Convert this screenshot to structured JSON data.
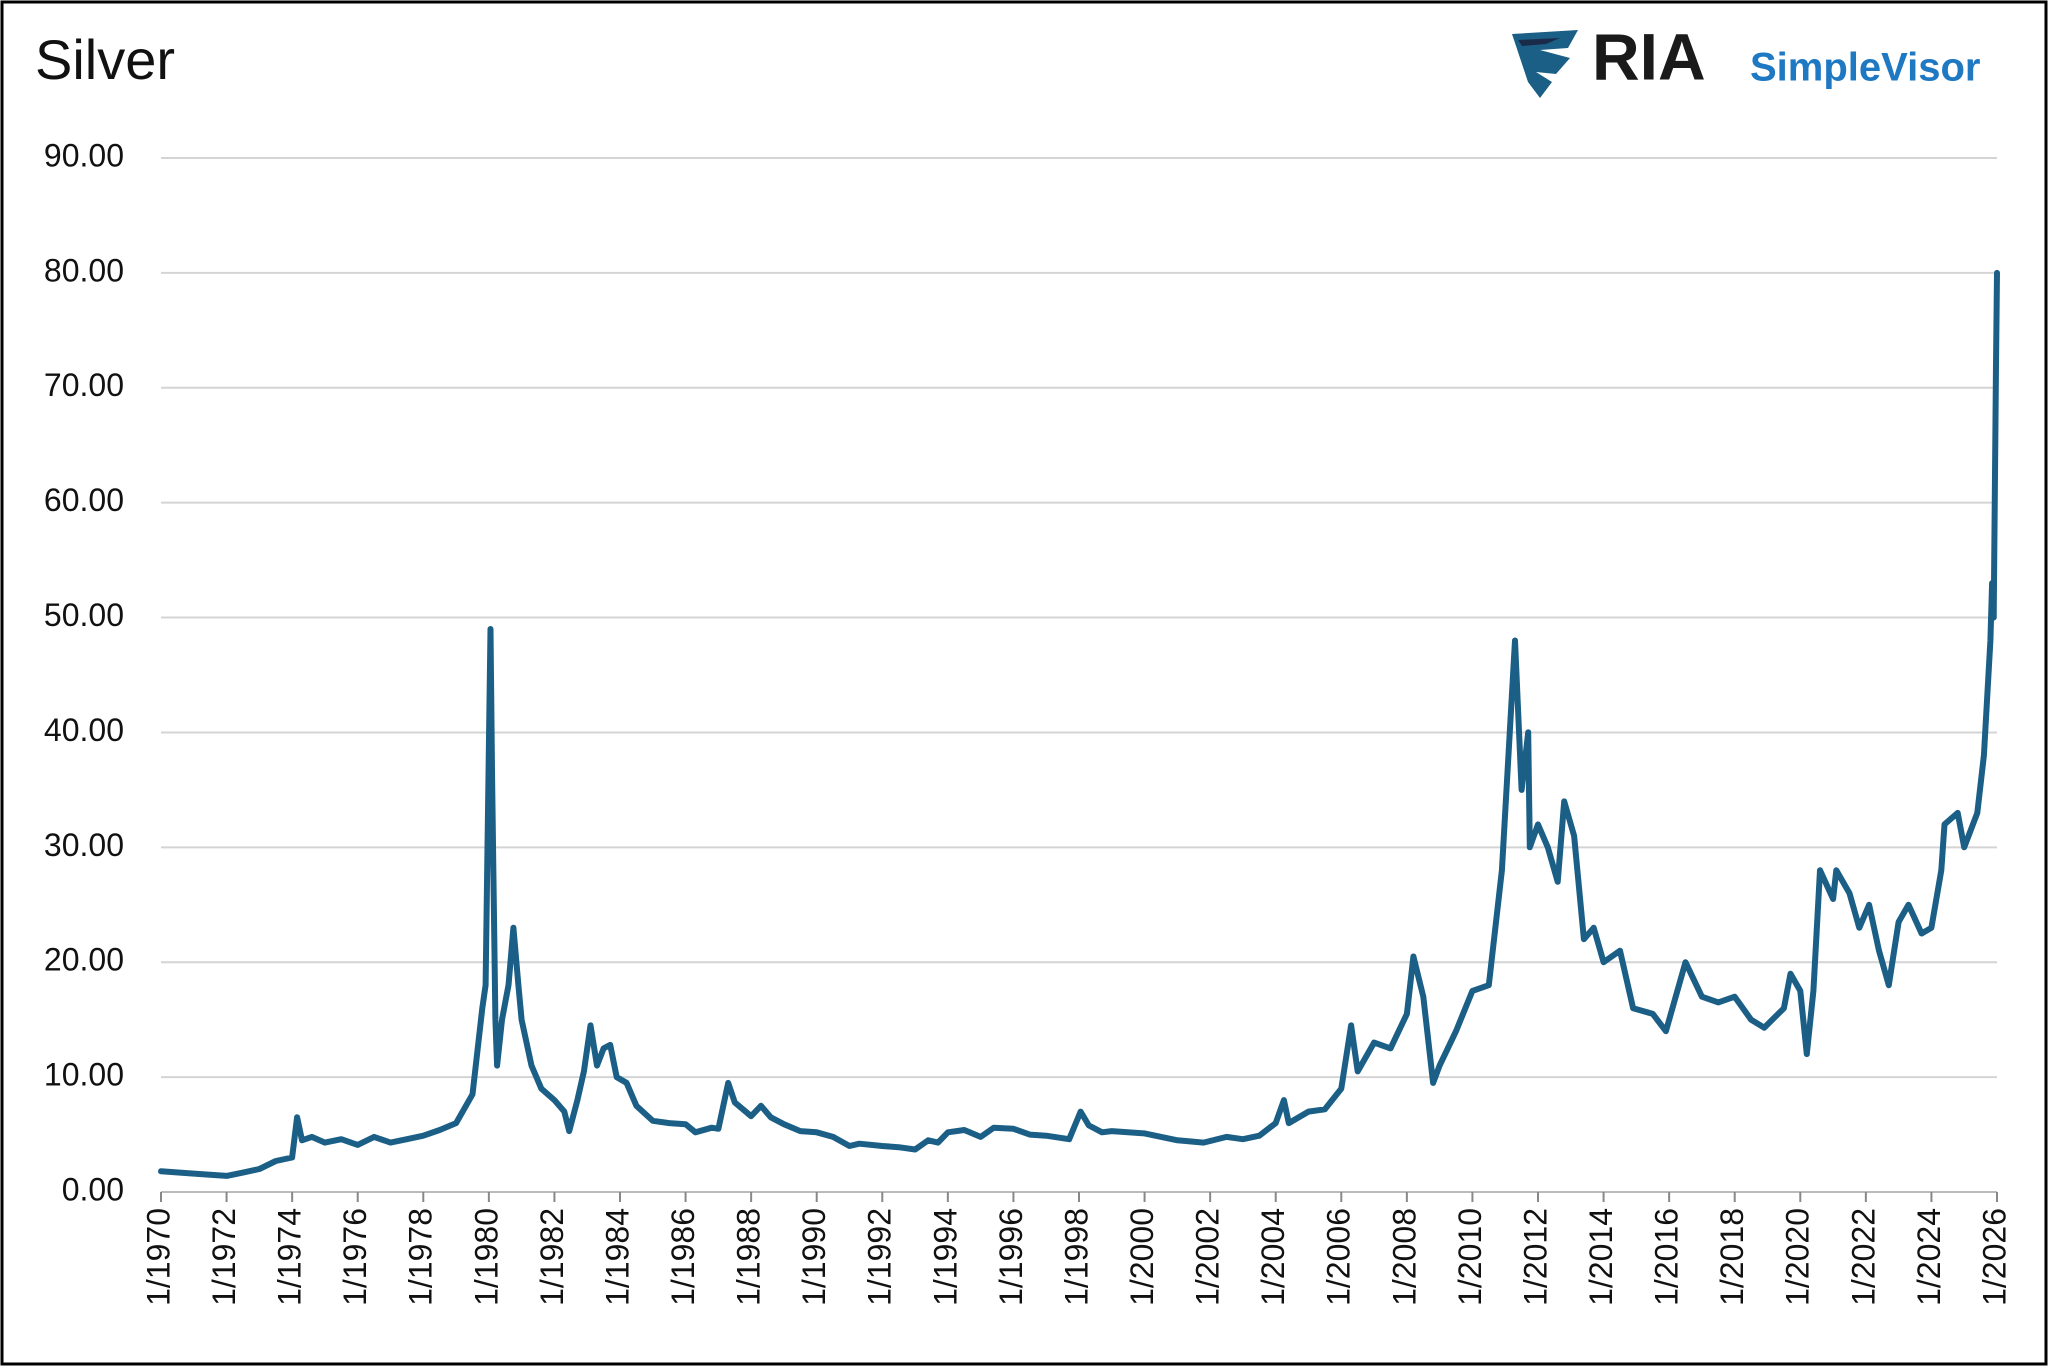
{
  "chart_data": {
    "type": "line",
    "title": "Silver",
    "logo": {
      "brand": "RIA",
      "product": "SimpleVisor"
    },
    "color": "#1c5f86",
    "x": [
      1970,
      1971,
      1971.5,
      1972,
      1972.5,
      1973,
      1973.5,
      1974,
      1974.15,
      1974.3,
      1974.6,
      1975,
      1975.5,
      1976,
      1976.5,
      1977,
      1977.5,
      1978,
      1978.5,
      1979,
      1979.5,
      1979.8,
      1979.9,
      1980.05,
      1980.1,
      1980.2,
      1980.25,
      1980.4,
      1980.6,
      1980.75,
      1980.9,
      1981,
      1981.3,
      1981.6,
      1982,
      1982.3,
      1982.45,
      1982.7,
      1982.9,
      1983.1,
      1983.3,
      1983.5,
      1983.7,
      1983.9,
      1984.2,
      1984.5,
      1985,
      1985.5,
      1986,
      1986.3,
      1986.8,
      1987,
      1987.3,
      1987.5,
      1988,
      1988.3,
      1988.6,
      1989,
      1989.5,
      1990,
      1990.5,
      1991,
      1991.3,
      1992,
      1992.5,
      1993,
      1993.4,
      1993.7,
      1994,
      1994.5,
      1995,
      1995.4,
      1996,
      1996.5,
      1997,
      1997.7,
      1998.05,
      1998.3,
      1998.7,
      1999,
      2000,
      2001,
      2001.8,
      2002.5,
      2003,
      2003.5,
      2004,
      2004.25,
      2004.4,
      2005,
      2005.5,
      2006,
      2006.3,
      2006.5,
      2007,
      2007.5,
      2008,
      2008.2,
      2008.5,
      2008.8,
      2009,
      2009.5,
      2010,
      2010.5,
      2010.9,
      2011.3,
      2011.5,
      2011.7,
      2011.75,
      2012,
      2012.3,
      2012.6,
      2012.8,
      2013.1,
      2013.4,
      2013.7,
      2014,
      2014.5,
      2014.9,
      2015.5,
      2015.9,
      2016.5,
      2017,
      2017.5,
      2018,
      2018.5,
      2018.9,
      2019.5,
      2019.7,
      2020,
      2020.2,
      2020.4,
      2020.6,
      2021,
      2021.1,
      2021.5,
      2021.8,
      2022.1,
      2022.4,
      2022.7,
      2023,
      2023.3,
      2023.7,
      2024,
      2024.3,
      2024.4,
      2024.8,
      2025,
      2025.4,
      2025.6,
      2025.8,
      2025.85,
      2025.9,
      2025.97,
      2026
    ],
    "values": [
      1.8,
      1.6,
      1.5,
      1.4,
      1.7,
      2.0,
      2.7,
      3.0,
      6.5,
      4.5,
      4.8,
      4.3,
      4.6,
      4.1,
      4.8,
      4.3,
      4.6,
      4.9,
      5.4,
      6.0,
      8.5,
      16.0,
      18.0,
      49.0,
      36.0,
      15.0,
      11.0,
      15.0,
      18.0,
      23.0,
      18.0,
      15.0,
      11.0,
      9.0,
      8.0,
      7.0,
      5.3,
      8.0,
      10.5,
      14.5,
      11.0,
      12.5,
      12.8,
      10.0,
      9.5,
      7.5,
      6.2,
      6.0,
      5.9,
      5.2,
      5.6,
      5.5,
      9.5,
      7.8,
      6.6,
      7.5,
      6.5,
      5.9,
      5.3,
      5.2,
      4.8,
      4.0,
      4.2,
      4.0,
      3.9,
      3.7,
      4.5,
      4.3,
      5.2,
      5.4,
      4.8,
      5.6,
      5.5,
      5.0,
      4.9,
      4.6,
      7.0,
      5.8,
      5.2,
      5.3,
      5.1,
      4.5,
      4.3,
      4.8,
      4.6,
      4.9,
      6.0,
      8.0,
      6.0,
      7.0,
      7.2,
      9.0,
      14.5,
      10.5,
      13.0,
      12.5,
      15.5,
      20.5,
      17.0,
      9.5,
      11.0,
      14.0,
      17.5,
      18.0,
      28.0,
      48.0,
      35.0,
      40.0,
      30.0,
      32.0,
      30.0,
      27.0,
      34.0,
      31.0,
      22.0,
      23.0,
      20.0,
      21.0,
      16.0,
      15.5,
      14.0,
      20.0,
      17.0,
      16.5,
      17.0,
      15.0,
      14.3,
      16.0,
      19.0,
      17.5,
      12.0,
      17.5,
      28.0,
      25.5,
      28.0,
      26.0,
      23.0,
      25.0,
      21.0,
      18.0,
      23.5,
      25.0,
      22.5,
      23.0,
      28.0,
      32.0,
      33.0,
      30.0,
      33.0,
      38.0,
      48.0,
      53.0,
      50.0,
      72.0,
      80.0
    ],
    "xlim": [
      1970,
      2026
    ],
    "xticks": [
      {
        "value": 1970,
        "label": "1/1970"
      },
      {
        "value": 1972,
        "label": "1/1972"
      },
      {
        "value": 1974,
        "label": "1/1974"
      },
      {
        "value": 1976,
        "label": "1/1976"
      },
      {
        "value": 1978,
        "label": "1/1978"
      },
      {
        "value": 1980,
        "label": "1/1980"
      },
      {
        "value": 1982,
        "label": "1/1982"
      },
      {
        "value": 1984,
        "label": "1/1984"
      },
      {
        "value": 1986,
        "label": "1/1986"
      },
      {
        "value": 1988,
        "label": "1/1988"
      },
      {
        "value": 1990,
        "label": "1/1990"
      },
      {
        "value": 1992,
        "label": "1/1992"
      },
      {
        "value": 1994,
        "label": "1/1994"
      },
      {
        "value": 1996,
        "label": "1/1996"
      },
      {
        "value": 1998,
        "label": "1/1998"
      },
      {
        "value": 2000,
        "label": "1/2000"
      },
      {
        "value": 2002,
        "label": "1/2002"
      },
      {
        "value": 2004,
        "label": "1/2004"
      },
      {
        "value": 2006,
        "label": "1/2006"
      },
      {
        "value": 2008,
        "label": "1/2008"
      },
      {
        "value": 2010,
        "label": "1/2010"
      },
      {
        "value": 2012,
        "label": "1/2012"
      },
      {
        "value": 2014,
        "label": "1/2014"
      },
      {
        "value": 2016,
        "label": "1/2016"
      },
      {
        "value": 2018,
        "label": "1/2018"
      },
      {
        "value": 2020,
        "label": "1/2020"
      },
      {
        "value": 2022,
        "label": "1/2022"
      },
      {
        "value": 2024,
        "label": "1/2024"
      },
      {
        "value": 2026,
        "label": "1/2026"
      }
    ],
    "ylim": [
      0,
      90
    ],
    "yticks": [
      {
        "value": 0,
        "label": "0.00"
      },
      {
        "value": 10,
        "label": "10.00"
      },
      {
        "value": 20,
        "label": "20.00"
      },
      {
        "value": 30,
        "label": "30.00"
      },
      {
        "value": 40,
        "label": "40.00"
      },
      {
        "value": 50,
        "label": "50.00"
      },
      {
        "value": 60,
        "label": "60.00"
      },
      {
        "value": 70,
        "label": "70.00"
      },
      {
        "value": 80,
        "label": "80.00"
      },
      {
        "value": 90,
        "label": "90.00"
      }
    ],
    "grid": true
  }
}
